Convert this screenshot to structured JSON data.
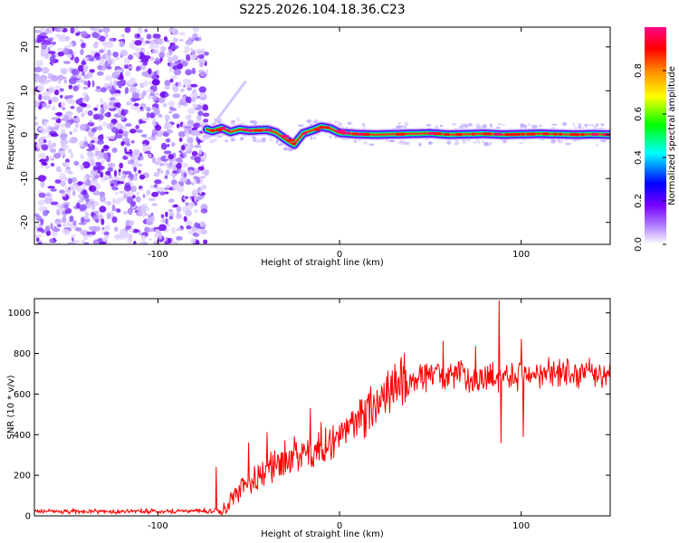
{
  "chart_data": [
    {
      "type": "heatmap",
      "title": "S225.2026.104.18.36.C23",
      "xlabel": "Height of straight line (km)",
      "ylabel": "Frequency (Hz)",
      "xlim": [
        -168,
        149
      ],
      "ylim": [
        -25,
        24.5
      ],
      "xticks": [
        -100,
        0,
        100
      ],
      "yticks": [
        -20,
        -10,
        0,
        10,
        20
      ],
      "colorbar": {
        "label": "Normalized spectral amplitude",
        "range": [
          0,
          1
        ],
        "ticks": [
          "0.0",
          "0.2",
          "0.4",
          "0.6",
          "0.8"
        ],
        "colors": [
          "#ffffff",
          "#7700ff",
          "#0000ff",
          "#00ffff",
          "#00ff00",
          "#ffff00",
          "#ff8800",
          "#ff0000",
          "#ff0088"
        ]
      },
      "noise_region_x": [
        -168,
        -73
      ],
      "ridge": {
        "x": [
          -73,
          -70,
          -65,
          -60,
          -55,
          -50,
          -45,
          -40,
          -35,
          -30,
          -27,
          -25,
          -23,
          -20,
          -15,
          -10,
          -5,
          0,
          10,
          20,
          30,
          40,
          50,
          60,
          70,
          80,
          90,
          100,
          110,
          120,
          130,
          140,
          149
        ],
        "freq": [
          1.2,
          0.8,
          1.5,
          0.6,
          1.2,
          0.9,
          1.0,
          1.1,
          0.5,
          -1.0,
          -1.8,
          -2.3,
          -1.2,
          0.3,
          1.0,
          1.8,
          1.4,
          0.4,
          0.1,
          0.0,
          0.1,
          0.2,
          0.3,
          0.0,
          0.1,
          0.2,
          0.0,
          0.1,
          0.2,
          0.1,
          0.0,
          0.1,
          0.0
        ]
      }
    },
    {
      "type": "line",
      "xlabel": "Height of straight line (km)",
      "ylabel": "SNR (10 * v/v)",
      "xlim": [
        -168,
        149
      ],
      "ylim": [
        0,
        1070
      ],
      "xticks": [
        -100,
        0,
        100
      ],
      "yticks": [
        0,
        200,
        400,
        600,
        800,
        1000
      ],
      "color": "#ff0000",
      "series": [
        {
          "name": "SNR",
          "x": [
            -168,
            -140,
            -110,
            -80,
            -63,
            -60,
            -57,
            -55,
            -50,
            -45,
            -40,
            -35,
            -30,
            -25,
            -20,
            -15,
            -10,
            -5,
            0,
            5,
            10,
            15,
            20,
            25,
            30,
            35,
            40,
            45,
            50,
            55,
            60,
            65,
            70,
            75,
            80,
            85,
            90,
            95,
            100,
            110,
            120,
            130,
            140,
            149
          ],
          "y": [
            22,
            22,
            22,
            25,
            25,
            60,
            100,
            140,
            160,
            190,
            220,
            250,
            270,
            290,
            290,
            300,
            330,
            350,
            400,
            430,
            470,
            510,
            550,
            600,
            640,
            660,
            670,
            680,
            690,
            690,
            690,
            690,
            680,
            680,
            680,
            690,
            690,
            700,
            700,
            700,
            700,
            700,
            700,
            700
          ]
        }
      ],
      "spikes": [
        {
          "x": -68,
          "y": 240
        },
        {
          "x": -50,
          "y": 360
        },
        {
          "x": -40,
          "y": 410
        },
        {
          "x": -30,
          "y": 370
        },
        {
          "x": -25,
          "y": 390
        },
        {
          "x": -16,
          "y": 530
        },
        {
          "x": -10,
          "y": 460
        },
        {
          "x": 57,
          "y": 860
        },
        {
          "x": 75,
          "y": 835
        },
        {
          "x": 88,
          "y": 1060
        },
        {
          "x": 89,
          "y": 360
        },
        {
          "x": 100,
          "y": 870
        },
        {
          "x": 101,
          "y": 390
        }
      ]
    }
  ]
}
